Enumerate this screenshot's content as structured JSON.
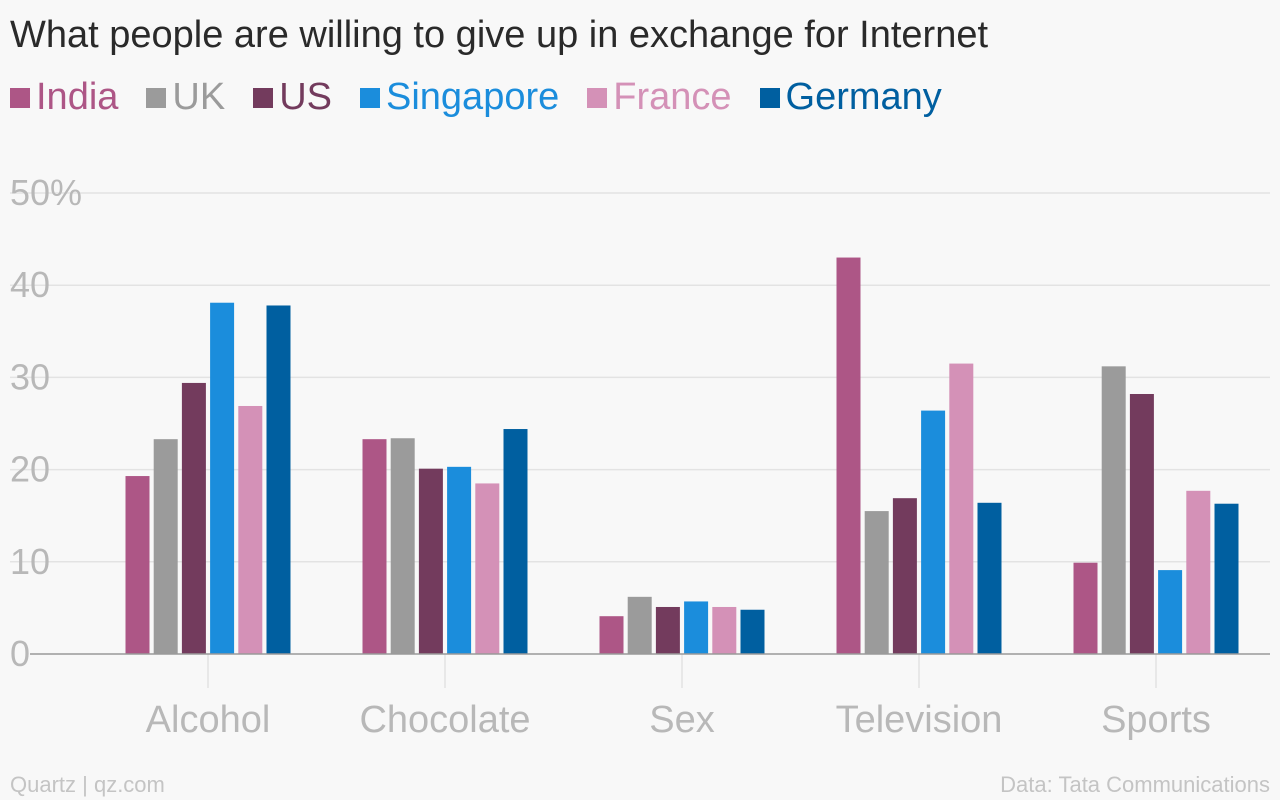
{
  "title": "What people are willing to give up in exchange for Internet",
  "footer": {
    "source_left": "Quartz | qz.com",
    "source_right": "Data: Tata Communications"
  },
  "colors": {
    "India": "#ad5686",
    "UK": "#9b9b9b",
    "US": "#733b5d",
    "Singapore": "#1b8ddc",
    "France": "#d491b7",
    "Germany": "#005fa0",
    "grid": "#e3e3e3",
    "tick_label": "#b8b8b8",
    "axis": "#999999"
  },
  "chart_data": {
    "type": "bar",
    "title": "What people are willing to give up in exchange for Internet",
    "categories": [
      "Alcohol",
      "Chocolate",
      "Sex",
      "Television",
      "Sports"
    ],
    "series": [
      {
        "name": "India",
        "values": [
          19.3,
          23.3,
          4.1,
          43.0,
          9.9
        ]
      },
      {
        "name": "UK",
        "values": [
          23.3,
          23.4,
          6.2,
          15.5,
          31.2
        ]
      },
      {
        "name": "US",
        "values": [
          29.4,
          20.1,
          5.1,
          16.9,
          28.2
        ]
      },
      {
        "name": "Singapore",
        "values": [
          38.1,
          20.3,
          5.7,
          26.4,
          9.1
        ]
      },
      {
        "name": "France",
        "values": [
          26.9,
          18.5,
          5.1,
          31.5,
          17.7
        ]
      },
      {
        "name": "Germany",
        "values": [
          37.8,
          24.4,
          4.8,
          16.4,
          16.3
        ]
      }
    ],
    "yticks": [
      "0",
      "10",
      "20",
      "30",
      "40",
      "50%"
    ],
    "ylim": [
      0,
      50
    ],
    "xlabel": "",
    "ylabel": "",
    "grid": true,
    "legend_position": "top-left"
  }
}
